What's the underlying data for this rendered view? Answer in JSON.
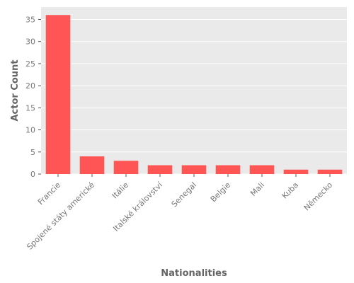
{
  "chart_data": {
    "type": "bar",
    "title": "",
    "xlabel": "Nationalities",
    "ylabel": "Actor Count",
    "categories": [
      "Francie",
      "Spojené státy americké",
      "Itálie",
      "Italské království",
      "Senegal",
      "Belgie",
      "Mali",
      "Kuba",
      "Německo"
    ],
    "values": [
      36,
      4,
      3,
      2,
      2,
      2,
      2,
      1,
      1
    ],
    "ylim": [
      0,
      37.8
    ],
    "yticks": [
      0,
      5,
      10,
      15,
      20,
      25,
      30,
      35
    ],
    "grid": true,
    "bar_color": "#ff5555",
    "panel_color": "#eaeaea",
    "grid_color": "#ffffff"
  }
}
